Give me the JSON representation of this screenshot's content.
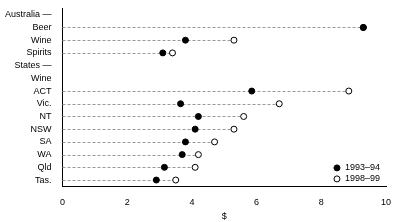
{
  "chart_data": {
    "type": "dot",
    "orientation": "horizontal",
    "x_label": "$",
    "categories": [
      "Australia —",
      "Beer",
      "Wine",
      "Spirits",
      "States —",
      "Wine",
      "ACT",
      "Vic.",
      "NT",
      "NSW",
      "SA",
      "WA",
      "Qld",
      "Tas."
    ],
    "series": [
      {
        "name": "1993–94",
        "color": "#000000",
        "marker": "filled_circle",
        "values": [
          null,
          9.3,
          3.8,
          3.1,
          null,
          null,
          5.85,
          3.65,
          4.2,
          4.1,
          3.8,
          3.7,
          3.15,
          2.9
        ]
      },
      {
        "name": "1998–99",
        "color": "#000000",
        "marker": "open_circle",
        "values": [
          null,
          9.3,
          5.3,
          3.4,
          null,
          null,
          8.85,
          6.7,
          5.6,
          5.3,
          4.7,
          4.2,
          4.1,
          3.5
        ]
      }
    ],
    "xlim": [
      0,
      10
    ],
    "xticks": [
      0,
      2,
      4,
      6,
      8,
      10
    ],
    "grid": false,
    "legend": "lower right"
  }
}
